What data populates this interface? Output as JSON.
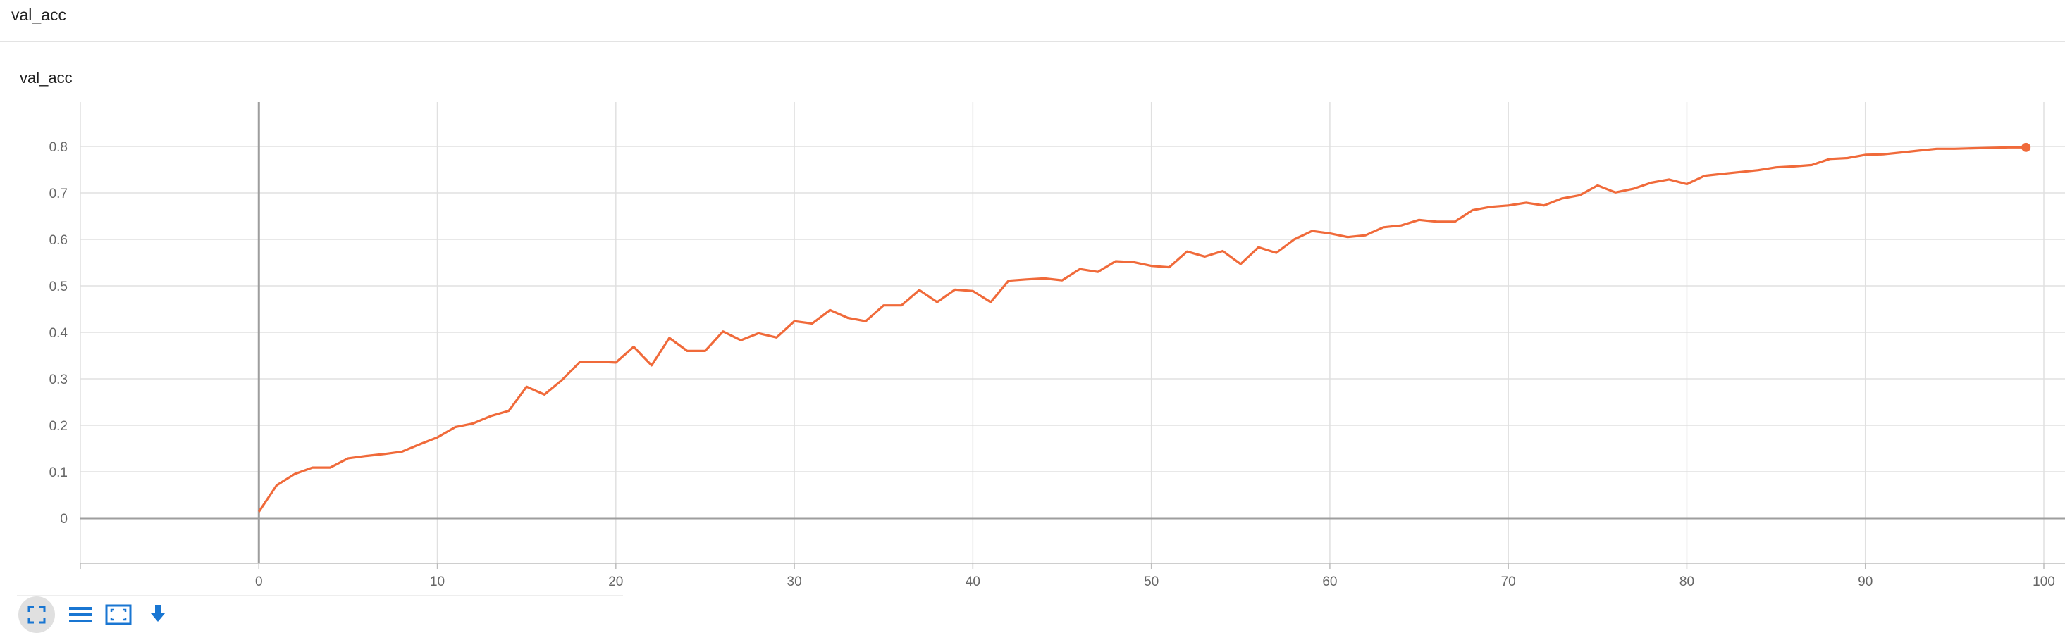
{
  "section": {
    "title": "val_acc"
  },
  "card": {
    "title": "val_acc"
  },
  "colors": {
    "series": "#f06a3a",
    "grid": "#e0e0e0",
    "axis": "#9e9e9e",
    "accent": "#1976d2"
  },
  "toolbar": {
    "icons": [
      "fullscreen-icon",
      "list-icon",
      "fit-domain-icon",
      "download-icon"
    ]
  },
  "chart_data": {
    "type": "line",
    "title": "val_acc",
    "xlabel": "",
    "ylabel": "",
    "xlim": [
      -10,
      100
    ],
    "ylim": [
      -0.1,
      0.9
    ],
    "xticks": [
      0,
      10,
      20,
      30,
      40,
      50,
      60,
      70,
      80,
      90,
      100
    ],
    "yticks": [
      0,
      0.1,
      0.2,
      0.3,
      0.4,
      0.5,
      0.6,
      0.7,
      0.8
    ],
    "xtick_labels": [
      "0",
      "10",
      "20",
      "30",
      "40",
      "50",
      "60",
      "70",
      "80",
      "90",
      "100"
    ],
    "ytick_labels": [
      "0",
      "0.1",
      "0.2",
      "0.3",
      "0.4",
      "0.5",
      "0.6",
      "0.7",
      "0.8"
    ],
    "grid": true,
    "series": [
      {
        "x": [
          0,
          1,
          2,
          3,
          4,
          5,
          6,
          7,
          8,
          9,
          10,
          11,
          12,
          13,
          14,
          15,
          16,
          17,
          18,
          19,
          20,
          21,
          22,
          23,
          24,
          25,
          26,
          27,
          28,
          29,
          30,
          31,
          32,
          33,
          34,
          35,
          36,
          37,
          38,
          39,
          40,
          41,
          42,
          43,
          44,
          45,
          46,
          47,
          48,
          49,
          50,
          51,
          52,
          53,
          54,
          55,
          56,
          57,
          58,
          59,
          60,
          61,
          62,
          63,
          64,
          65,
          66,
          67,
          68,
          69,
          70,
          71,
          72,
          73,
          74,
          75,
          76,
          77,
          78,
          79,
          80,
          81,
          82,
          83,
          84,
          85,
          86,
          87,
          88,
          89,
          90,
          91,
          92,
          93,
          94,
          95,
          96,
          97,
          98,
          99
        ],
        "values": [
          0.014,
          0.071,
          0.095,
          0.109,
          0.109,
          0.129,
          0.134,
          0.138,
          0.143,
          0.159,
          0.174,
          0.196,
          0.204,
          0.22,
          0.231,
          0.283,
          0.266,
          0.298,
          0.337,
          0.337,
          0.335,
          0.369,
          0.329,
          0.388,
          0.36,
          0.36,
          0.402,
          0.383,
          0.398,
          0.389,
          0.424,
          0.419,
          0.448,
          0.431,
          0.424,
          0.458,
          0.458,
          0.491,
          0.465,
          0.492,
          0.489,
          0.465,
          0.511,
          0.514,
          0.516,
          0.512,
          0.536,
          0.53,
          0.553,
          0.551,
          0.543,
          0.54,
          0.574,
          0.563,
          0.575,
          0.547,
          0.583,
          0.571,
          0.6,
          0.618,
          0.613,
          0.605,
          0.609,
          0.626,
          0.63,
          0.642,
          0.638,
          0.638,
          0.663,
          0.67,
          0.673,
          0.679,
          0.673,
          0.688,
          0.695,
          0.716,
          0.701,
          0.709,
          0.722,
          0.729,
          0.719,
          0.737,
          0.741,
          0.745,
          0.749,
          0.755,
          0.757,
          0.76,
          0.773,
          0.775,
          0.782,
          0.783,
          0.787,
          0.791,
          0.795,
          0.795,
          0.796,
          0.797,
          0.798,
          0.798
        ]
      }
    ]
  }
}
